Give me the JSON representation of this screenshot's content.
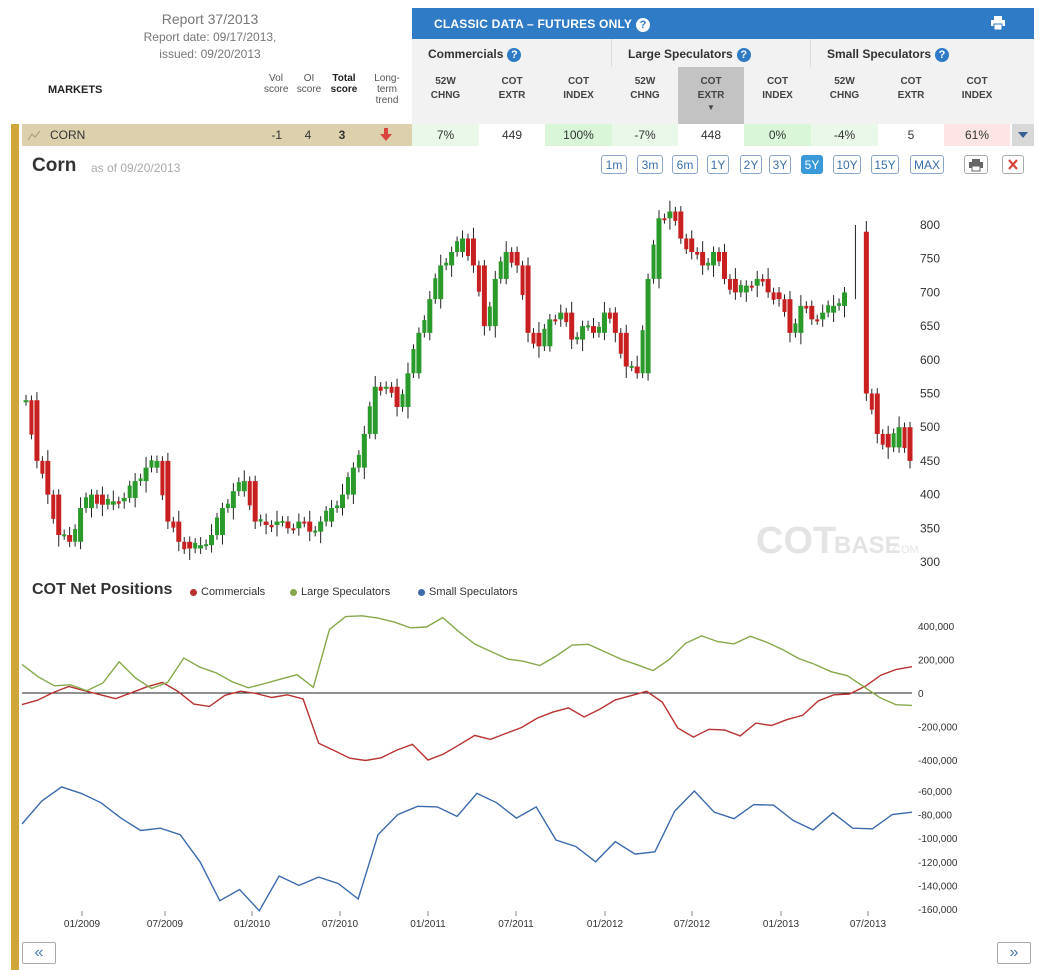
{
  "report": {
    "title": "Report 37/2013",
    "date": "Report date: 09/17/2013,",
    "issued": "issued: 09/20/2013"
  },
  "header": {
    "markets": "MARKETS",
    "vol_score": [
      "Vol",
      "score"
    ],
    "oi_score": [
      "OI",
      "score"
    ],
    "total_score": [
      "Total",
      "score"
    ],
    "long_term": [
      "Long-",
      "term",
      "trend"
    ]
  },
  "classic": {
    "title": "CLASSIC DATA – FUTURES ONLY",
    "help": "?"
  },
  "groups": [
    {
      "label": "Commercials",
      "cols": [
        [
          "52W",
          "CHNG"
        ],
        [
          "COT",
          "EXTR"
        ],
        [
          "COT",
          "INDEX"
        ]
      ]
    },
    {
      "label": "Large Speculators",
      "cols": [
        [
          "52W",
          "CHNG"
        ],
        [
          "COT",
          "EXTR"
        ],
        [
          "COT",
          "INDEX"
        ]
      ]
    },
    {
      "label": "Small Speculators",
      "cols": [
        [
          "52W",
          "CHNG"
        ],
        [
          "COT",
          "EXTR"
        ],
        [
          "COT",
          "INDEX"
        ]
      ]
    }
  ],
  "row": {
    "market": "CORN",
    "vol": "-1",
    "oi": "4",
    "total": "3",
    "values": [
      "7%",
      "449",
      "100%",
      "-7%",
      "448",
      "0%",
      "-4%",
      "5",
      "61%"
    ],
    "colors": [
      "#e9f8e9",
      "#ffffff",
      "#d9f6d9",
      "#e9f8e9",
      "#ffffff",
      "#d9f6d9",
      "#e9f8e9",
      "#ffffff",
      "#fde5e5"
    ]
  },
  "chart": {
    "title": "Corn",
    "asof": "as of 09/20/2013",
    "ranges": [
      "1m",
      "3m",
      "6m",
      "1Y",
      "2Y",
      "3Y",
      "5Y",
      "10Y",
      "15Y",
      "MAX"
    ],
    "active_range": "5Y",
    "watermark": "COT",
    "watermark2": "BASE",
    "watermark3": ".COM",
    "cotnet_title": "COT Net Positions",
    "legend": [
      {
        "name": "Commercials",
        "color": "#b83232"
      },
      {
        "name": "Large Speculators",
        "color": "#86a84a"
      },
      {
        "name": "Small Speculators",
        "color": "#3c6aad"
      }
    ]
  },
  "chart_data": [
    {
      "type": "line",
      "y_ticks": [
        800,
        750,
        700,
        650,
        600,
        550,
        500,
        450,
        400,
        350,
        300
      ],
      "ylim": [
        300,
        800
      ],
      "series": [
        {
          "values": [
            540,
            450,
            400,
            340,
            330,
            380,
            400,
            385,
            390,
            395,
            420,
            440,
            450,
            360,
            330,
            320,
            325,
            340,
            380,
            405,
            420,
            360,
            355,
            360,
            350,
            360,
            345,
            360,
            380,
            400,
            440,
            490,
            560,
            560,
            530,
            580,
            640,
            690,
            740,
            760,
            780,
            740,
            650,
            720,
            760,
            740,
            640,
            620,
            660,
            670,
            630,
            650,
            640,
            670,
            640,
            590,
            580,
            720,
            810,
            820,
            780,
            760,
            740,
            760,
            720,
            700,
            710,
            720,
            700,
            690,
            640,
            680,
            660,
            670,
            680,
            700,
            790,
            550,
            490,
            470,
            500,
            450
          ]
        }
      ]
    },
    {
      "type": "line",
      "y_ticks": [
        400000,
        200000,
        0,
        -200000,
        -400000
      ],
      "ylim": [
        -450000,
        450000
      ],
      "series": [
        {
          "name": "Commercials",
          "values": [
            -60000,
            -40000,
            0,
            30000,
            20000,
            -10000,
            -40000,
            10000,
            40000,
            60000,
            0,
            -60000,
            -80000,
            -20000,
            20000,
            0,
            -30000,
            -20000,
            -30000,
            -300000,
            -350000,
            -380000,
            -400000,
            -390000,
            -350000,
            -300000,
            -400000,
            -370000,
            -300000,
            -250000,
            -280000,
            -250000,
            -200000,
            -150000,
            -120000,
            -80000,
            -140000,
            -100000,
            -50000,
            -10000,
            10000,
            -60000,
            -200000,
            -260000,
            -220000,
            -230000,
            -250000,
            -180000,
            -200000,
            -150000,
            -130000,
            -50000,
            -20000,
            0,
            40000,
            100000,
            150000,
            160000
          ]
        },
        {
          "name": "Large Speculators",
          "values": [
            180000,
            100000,
            40000,
            40000,
            20000,
            60000,
            180000,
            100000,
            30000,
            60000,
            200000,
            160000,
            120000,
            60000,
            40000,
            60000,
            80000,
            100000,
            40000,
            380000,
            450000,
            470000,
            450000,
            420000,
            380000,
            400000,
            450000,
            360000,
            300000,
            250000,
            200000,
            180000,
            170000,
            220000,
            280000,
            300000,
            250000,
            200000,
            160000,
            140000,
            200000,
            290000,
            350000,
            310000,
            290000,
            330000,
            310000,
            260000,
            200000,
            180000,
            130000,
            100000,
            30000,
            -20000,
            -70000,
            -80000
          ]
        }
      ]
    },
    {
      "type": "line",
      "y_ticks": [
        -60000,
        -80000,
        -100000,
        -120000,
        -140000,
        -160000
      ],
      "ylim": [
        -160000,
        -50000
      ],
      "series": [
        {
          "name": "Small Speculators",
          "values": [
            -85000,
            -70000,
            -55000,
            -65000,
            -70000,
            -80000,
            -95000,
            -90000,
            -100000,
            -120000,
            -150000,
            -145000,
            -160000,
            -135000,
            -140000,
            -130000,
            -140000,
            -150000,
            -100000,
            -80000,
            -70000,
            -75000,
            -80000,
            -65000,
            -70000,
            -80000,
            -75000,
            -100000,
            -110000,
            -120000,
            -100000,
            -115000,
            -110000,
            -80000,
            -60000,
            -75000,
            -85000,
            -70000,
            -75000,
            -85000,
            -90000,
            -80000,
            -90000,
            -95000,
            -80000,
            -75000
          ]
        }
      ]
    }
  ],
  "x_labels": [
    "01/2009",
    "07/2009",
    "01/2010",
    "07/2010",
    "01/2011",
    "07/2011",
    "01/2012",
    "07/2012",
    "01/2013",
    "07/2013"
  ],
  "nav": {
    "prev": "«",
    "next": "»"
  }
}
